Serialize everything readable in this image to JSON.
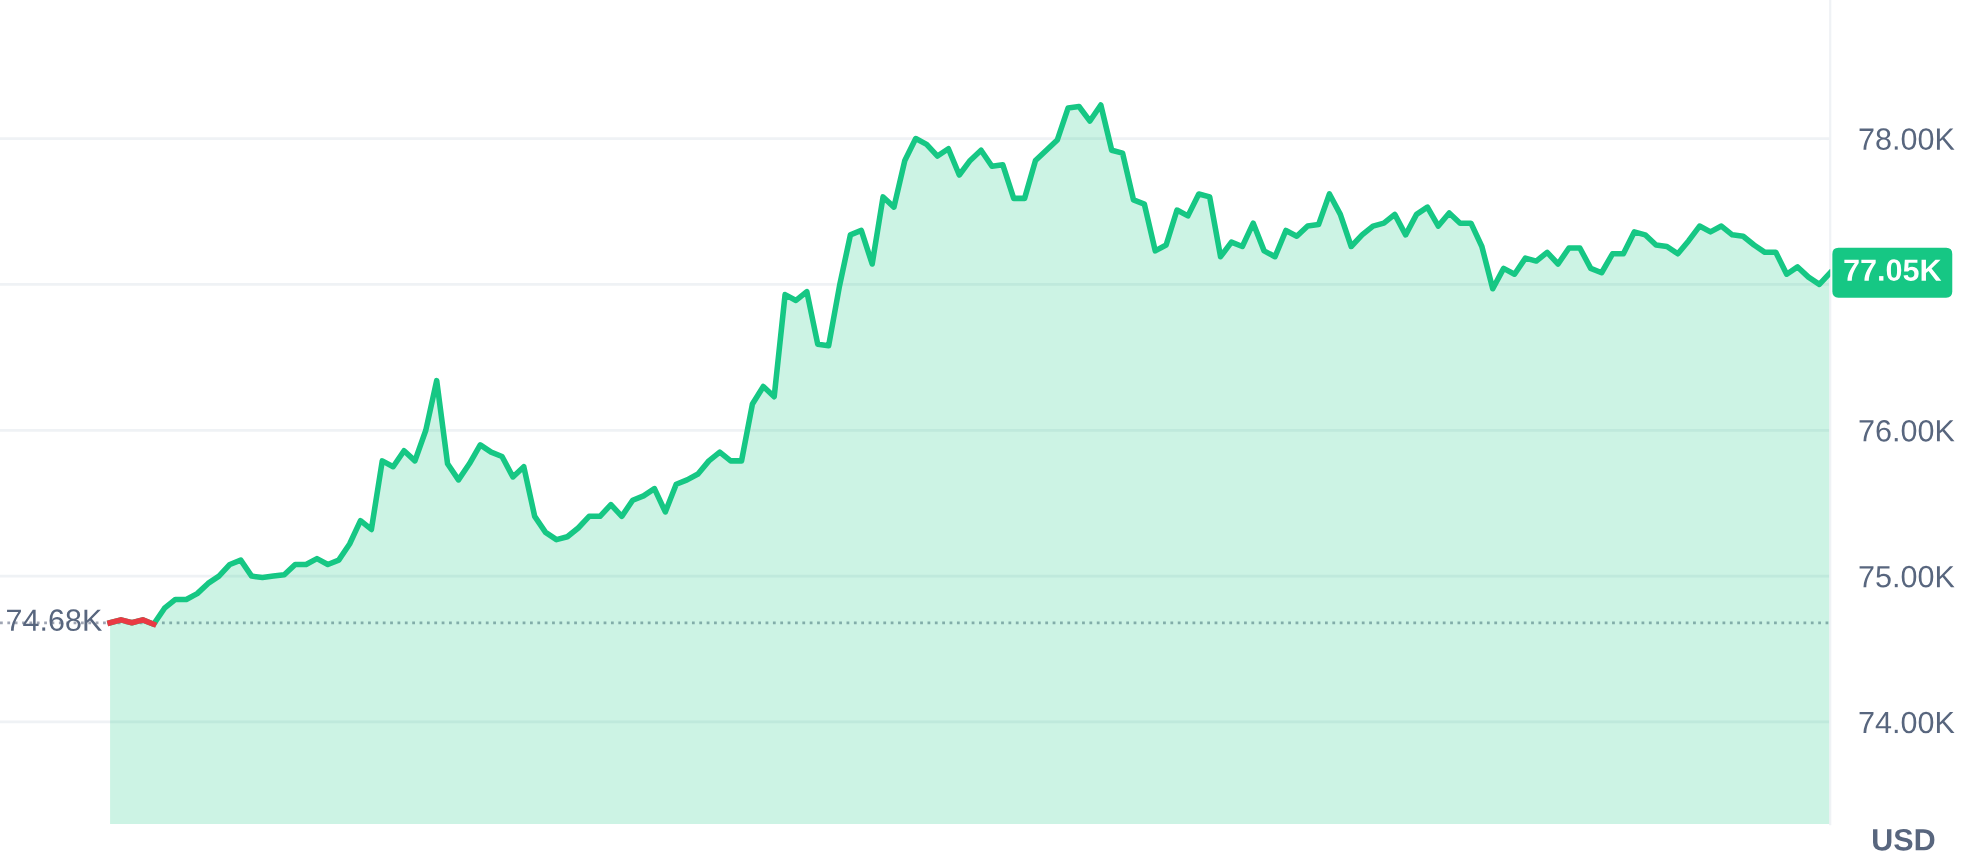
{
  "chart_data": {
    "type": "area",
    "categories": [
      null,
      null,
      null,
      null,
      null,
      null,
      null,
      null,
      null,
      null,
      null,
      null,
      null,
      null,
      null,
      null,
      null,
      null,
      null,
      null,
      null,
      null,
      null,
      null,
      null,
      null,
      null,
      null,
      null,
      null,
      null,
      null,
      null,
      null,
      null,
      null,
      null,
      null,
      null,
      null,
      null,
      null,
      null,
      null,
      null,
      null,
      null,
      null,
      null,
      null,
      null,
      null,
      null,
      null,
      null,
      null,
      null,
      null,
      null,
      null,
      null,
      null,
      null,
      null,
      null,
      null,
      null,
      null,
      null,
      null,
      null,
      null,
      null,
      null,
      null,
      null,
      null,
      null,
      null,
      null,
      null,
      null,
      null,
      null,
      null,
      null,
      null,
      null,
      null,
      null,
      null,
      null,
      null,
      null,
      null,
      null,
      null,
      null,
      null,
      null,
      null,
      null,
      null,
      null,
      null,
      null,
      null,
      null,
      null,
      null,
      null,
      null,
      null,
      null,
      null,
      null,
      null,
      null,
      null,
      null,
      null,
      null,
      null,
      null,
      null,
      null,
      null,
      null,
      null,
      null,
      null,
      null,
      null,
      null,
      null,
      null,
      null,
      null,
      null,
      null,
      null,
      null,
      null,
      null,
      null,
      null,
      null,
      null,
      null,
      null,
      null,
      null,
      null,
      null,
      null,
      null,
      null,
      null,
      null
    ],
    "series": [
      {
        "type": "line",
        "color": "#ea3943",
        "values": [
          74.68,
          74.7,
          74.68,
          74.7,
          74.67,
          null,
          null,
          null,
          null,
          null,
          null,
          null,
          null,
          null,
          null,
          null,
          null,
          null,
          null,
          null,
          null,
          null,
          null,
          null,
          null,
          null,
          null,
          null,
          null,
          null,
          null,
          null,
          null,
          null,
          null,
          null,
          null,
          null,
          null,
          null,
          null,
          null,
          null,
          null,
          null,
          null,
          null,
          null,
          null,
          null,
          null,
          null,
          null,
          null,
          null,
          null,
          null,
          null,
          null,
          null,
          null,
          null,
          null,
          null,
          null,
          null,
          null,
          null,
          null,
          null,
          null,
          null,
          null,
          null,
          null,
          null,
          null,
          null,
          null,
          null,
          null,
          null,
          null,
          null,
          null,
          null,
          null,
          null,
          null,
          null,
          null,
          null,
          null,
          null,
          null,
          null,
          null,
          null,
          null,
          null,
          null,
          null,
          null,
          null,
          null,
          null,
          null,
          null,
          null,
          null,
          null,
          null,
          null,
          null,
          null,
          null,
          null,
          null,
          null,
          null,
          null,
          null,
          null,
          null,
          null,
          null,
          null,
          null,
          null,
          null,
          null,
          null,
          null,
          null,
          null,
          null,
          null,
          null,
          null,
          null,
          null,
          null,
          null,
          null,
          null,
          null,
          null,
          null,
          null,
          null,
          null,
          null,
          null,
          null,
          null,
          null,
          null,
          null,
          null
        ]
      },
      {
        "color": "#16c784",
        "values": [
          74.68,
          74.7,
          74.68,
          74.7,
          74.67,
          74.78,
          74.84,
          74.84,
          74.88,
          74.95,
          75.0,
          75.08,
          75.11,
          75.0,
          74.99,
          75.0,
          75.01,
          75.08,
          75.08,
          75.12,
          75.08,
          75.11,
          75.22,
          75.38,
          75.32,
          75.79,
          75.75,
          75.86,
          75.79,
          76.0,
          76.34,
          75.77,
          75.66,
          75.77,
          75.9,
          75.85,
          75.82,
          75.68,
          75.75,
          75.41,
          75.3,
          75.25,
          75.27,
          75.33,
          75.41,
          75.41,
          75.49,
          75.41,
          75.52,
          75.55,
          75.6,
          75.44,
          75.63,
          75.66,
          75.7,
          75.79,
          75.85,
          75.79,
          75.79,
          76.18,
          76.3,
          76.23,
          76.93,
          76.89,
          76.95,
          76.59,
          76.58,
          76.99,
          77.34,
          77.37,
          77.14,
          77.6,
          77.53,
          77.85,
          78.0,
          77.96,
          77.88,
          77.93,
          77.75,
          77.85,
          77.92,
          77.81,
          77.82,
          77.59,
          77.59,
          77.85,
          77.92,
          77.99,
          78.21,
          78.22,
          78.12,
          78.23,
          77.92,
          77.9,
          77.58,
          77.55,
          77.23,
          77.27,
          77.51,
          77.47,
          77.62,
          77.6,
          77.19,
          77.29,
          77.26,
          77.42,
          77.23,
          77.19,
          77.37,
          77.33,
          77.4,
          77.41,
          77.62,
          77.48,
          77.26,
          77.34,
          77.4,
          77.42,
          77.48,
          77.34,
          77.48,
          77.53,
          77.4,
          77.49,
          77.42,
          77.42,
          77.26,
          76.97,
          77.11,
          77.07,
          77.18,
          77.16,
          77.22,
          77.14,
          77.25,
          77.25,
          77.11,
          77.08,
          77.21,
          77.21,
          77.36,
          77.34,
          77.27,
          77.26,
          77.21,
          77.3,
          77.4,
          77.36,
          77.4,
          77.34,
          77.33,
          77.27,
          77.22,
          77.22,
          77.07,
          77.12,
          77.05,
          77.0,
          77.08
        ]
      }
    ],
    "ylim": [
      73.3,
      78.95
    ],
    "yticks": [
      {
        "value": 74,
        "label": "74.00K"
      },
      {
        "value": 75,
        "label": "75.00K"
      },
      {
        "value": 76,
        "label": "76.00K"
      },
      {
        "value": 77,
        "label": null
      },
      {
        "value": 78,
        "label": "78.00K"
      }
    ],
    "ylabel": "USD",
    "grid": "y",
    "legend": false,
    "tick_labels": "y",
    "ref_lines": [
      {
        "axis": "y",
        "value": 74.68,
        "label": "74.68K",
        "color": "#a0a6b4",
        "line_style": "dotted"
      }
    ],
    "annotations": [
      "77.05K"
    ]
  }
}
